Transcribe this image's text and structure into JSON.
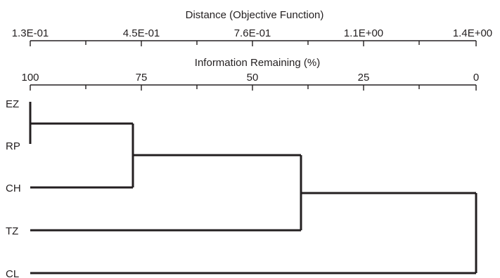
{
  "dendrogram": {
    "top_axis": {
      "title": "Distance (Objective Function)",
      "labels": [
        "1.3E-01",
        "4.5E-01",
        "7.6E-01",
        "1.1E+00",
        "1.4E+00"
      ]
    },
    "second_axis": {
      "title": "Information Remaining (%)",
      "labels": [
        "100",
        "75",
        "50",
        "25",
        "0"
      ]
    },
    "leaves": [
      "EZ",
      "RP",
      "CH",
      "TZ",
      "CL"
    ],
    "merges": [
      {
        "members": [
          "EZ",
          "RP"
        ],
        "information_remaining": 100
      },
      {
        "members": [
          "EZ",
          "RP",
          "CH"
        ],
        "information_remaining": 76
      },
      {
        "members": [
          "EZ",
          "RP",
          "CH",
          "TZ"
        ],
        "information_remaining": 38
      },
      {
        "members": [
          "EZ",
          "RP",
          "CH",
          "TZ",
          "CL"
        ],
        "information_remaining": 0
      }
    ]
  }
}
